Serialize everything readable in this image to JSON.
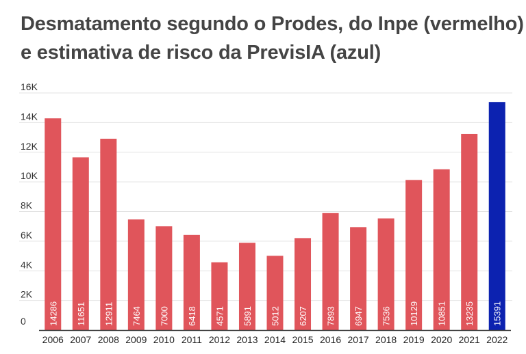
{
  "chart_data": {
    "type": "bar",
    "title_line1": "Desmatamento segundo o Prodes, do Inpe (vermelho)",
    "title_line2": "e estimativa de risco da PrevisIA (azul)",
    "xlabel": "",
    "ylabel": "",
    "ylim": [
      0,
      16000
    ],
    "y_ticks": [
      {
        "value": 0,
        "label": "0"
      },
      {
        "value": 2000,
        "label": "2K"
      },
      {
        "value": 4000,
        "label": "4K"
      },
      {
        "value": 6000,
        "label": "6K"
      },
      {
        "value": 8000,
        "label": "8K"
      },
      {
        "value": 10000,
        "label": "10K"
      },
      {
        "value": 12000,
        "label": "12K"
      },
      {
        "value": 14000,
        "label": "14K"
      },
      {
        "value": 16000,
        "label": "16K"
      }
    ],
    "categories": [
      "2006",
      "2007",
      "2008",
      "2009",
      "2010",
      "2011",
      "2012",
      "2013",
      "2014",
      "2015",
      "2016",
      "2017",
      "2018",
      "2019",
      "2020",
      "2021",
      "2022"
    ],
    "series": [
      {
        "name": "Prodes/Inpe",
        "color": "#e0555b",
        "values": [
          14286,
          11651,
          12911,
          7464,
          7000,
          6418,
          4571,
          5891,
          5012,
          6207,
          7893,
          6947,
          7536,
          10129,
          10851,
          13235,
          null
        ]
      },
      {
        "name": "PrevisIA",
        "color": "#0c22b0",
        "values": [
          null,
          null,
          null,
          null,
          null,
          null,
          null,
          null,
          null,
          null,
          null,
          null,
          null,
          null,
          null,
          null,
          15391
        ]
      }
    ],
    "grid": true,
    "gridline_color": "#e3e3e3",
    "axis_color": "#333333"
  }
}
